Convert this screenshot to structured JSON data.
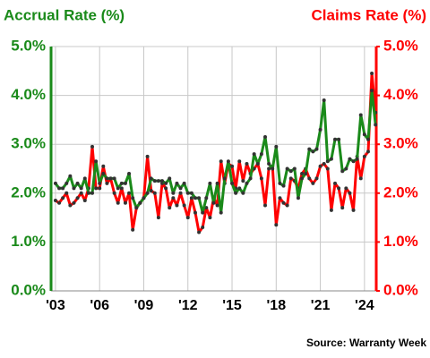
{
  "chart_data": {
    "type": "line",
    "ylabel": "Accrual Rate (%)",
    "y2label": "Claims Rate (%)",
    "source": "Source: Warranty Week",
    "x": [
      2003,
      2003.25,
      2003.5,
      2003.75,
      2004,
      2004.25,
      2004.5,
      2004.75,
      2005,
      2005.25,
      2005.5,
      2005.75,
      2006,
      2006.25,
      2006.5,
      2006.75,
      2007,
      2007.25,
      2007.5,
      2007.75,
      2008,
      2008.25,
      2008.5,
      2008.75,
      2009,
      2009.25,
      2009.5,
      2009.75,
      2010,
      2010.25,
      2010.5,
      2010.75,
      2011,
      2011.25,
      2011.5,
      2011.75,
      2012,
      2012.25,
      2012.5,
      2012.75,
      2013,
      2013.25,
      2013.5,
      2013.75,
      2014,
      2014.25,
      2014.5,
      2014.75,
      2015,
      2015.25,
      2015.5,
      2015.75,
      2016,
      2016.25,
      2016.5,
      2016.75,
      2017,
      2017.25,
      2017.5,
      2017.75,
      2018,
      2018.25,
      2018.5,
      2018.75,
      2019,
      2019.25,
      2019.5,
      2019.75,
      2020,
      2020.25,
      2020.5,
      2020.75,
      2021,
      2021.25,
      2021.5,
      2021.75,
      2022,
      2022.25,
      2022.5,
      2022.75,
      2023,
      2023.25,
      2023.5,
      2023.75,
      2024,
      2024.25,
      2024.5,
      2024.75
    ],
    "series": [
      {
        "color": "#1a8a1a",
        "values": [
          2.2,
          2.1,
          2.1,
          2.2,
          2.35,
          2.1,
          2.2,
          2.1,
          2.3,
          2.0,
          2.0,
          2.65,
          2.2,
          2.4,
          2.3,
          2.3,
          2.3,
          2.1,
          2.2,
          2.2,
          2.4,
          1.9,
          1.7,
          1.8,
          1.9,
          2.0,
          2.3,
          2.25,
          2.25,
          2.25,
          2.2,
          2.3,
          2.0,
          2.2,
          2.1,
          2.2,
          2.0,
          2.0,
          1.9,
          1.9,
          1.6,
          1.9,
          2.2,
          1.8,
          2.2,
          1.6,
          2.3,
          2.65,
          2.2,
          2.0,
          2.1,
          2.0,
          2.2,
          2.3,
          2.8,
          2.6,
          2.8,
          3.15,
          2.6,
          2.5,
          2.95,
          2.2,
          2.15,
          2.5,
          2.45,
          2.5,
          1.9,
          2.3,
          2.4,
          2.9,
          2.85,
          2.9,
          3.3,
          3.9,
          2.65,
          2.7,
          3.1,
          3.1,
          2.45,
          2.5,
          2.7,
          2.65,
          2.7,
          3.6,
          3.2,
          3.1,
          4.1,
          3.4
        ]
      },
      {
        "color": "#ff0000",
        "axis": "y2",
        "values": [
          1.85,
          1.8,
          1.9,
          2.0,
          1.75,
          1.8,
          1.9,
          2.0,
          1.85,
          2.1,
          2.95,
          2.1,
          2.1,
          2.55,
          2.2,
          2.3,
          2.0,
          1.8,
          2.1,
          1.8,
          2.0,
          1.25,
          1.7,
          1.8,
          1.9,
          2.75,
          2.05,
          2.0,
          1.5,
          2.2,
          2.1,
          1.7,
          1.9,
          1.75,
          2.0,
          1.75,
          1.5,
          1.9,
          1.6,
          1.2,
          1.3,
          1.7,
          1.5,
          1.9,
          1.75,
          2.65,
          2.2,
          2.6,
          2.55,
          2.1,
          2.65,
          2.25,
          2.6,
          2.4,
          2.5,
          2.6,
          2.3,
          1.75,
          2.5,
          2.55,
          1.35,
          1.9,
          1.8,
          1.75,
          2.3,
          2.25,
          2.1,
          2.4,
          2.5,
          2.3,
          2.2,
          2.3,
          2.55,
          2.6,
          2.5,
          1.65,
          2.2,
          2.1,
          1.7,
          2.1,
          2.0,
          1.65,
          2.75,
          2.3,
          2.75,
          2.85,
          4.45,
          3.65
        ]
      }
    ],
    "xlim": [
      2002.7,
      2024.8
    ],
    "xticks": [
      {
        "value": 2003,
        "label": "'03"
      },
      {
        "value": 2006,
        "label": "'06"
      },
      {
        "value": 2009,
        "label": "'09"
      },
      {
        "value": 2012,
        "label": "'12"
      },
      {
        "value": 2015,
        "label": "'15"
      },
      {
        "value": 2018,
        "label": "'18"
      },
      {
        "value": 2021,
        "label": "'21"
      },
      {
        "value": 2024,
        "label": "'24"
      }
    ],
    "ylim": [
      0,
      5
    ],
    "yticks": [
      {
        "value": 0,
        "label": "0.0%"
      },
      {
        "value": 1,
        "label": "1.0%"
      },
      {
        "value": 2,
        "label": "2.0%"
      },
      {
        "value": 3,
        "label": "3.0%"
      },
      {
        "value": 4,
        "label": "4.0%"
      },
      {
        "value": 5,
        "label": "5.0%"
      }
    ],
    "y2lim": [
      0,
      5
    ],
    "y2ticks": [
      {
        "value": 0,
        "label": "0.0%"
      },
      {
        "value": 1,
        "label": "1.0%"
      },
      {
        "value": 2,
        "label": "2.0%"
      },
      {
        "value": 3,
        "label": "3.0%"
      },
      {
        "value": 4,
        "label": "4.0%"
      },
      {
        "value": 5,
        "label": "5.0%"
      }
    ],
    "grid": true
  }
}
